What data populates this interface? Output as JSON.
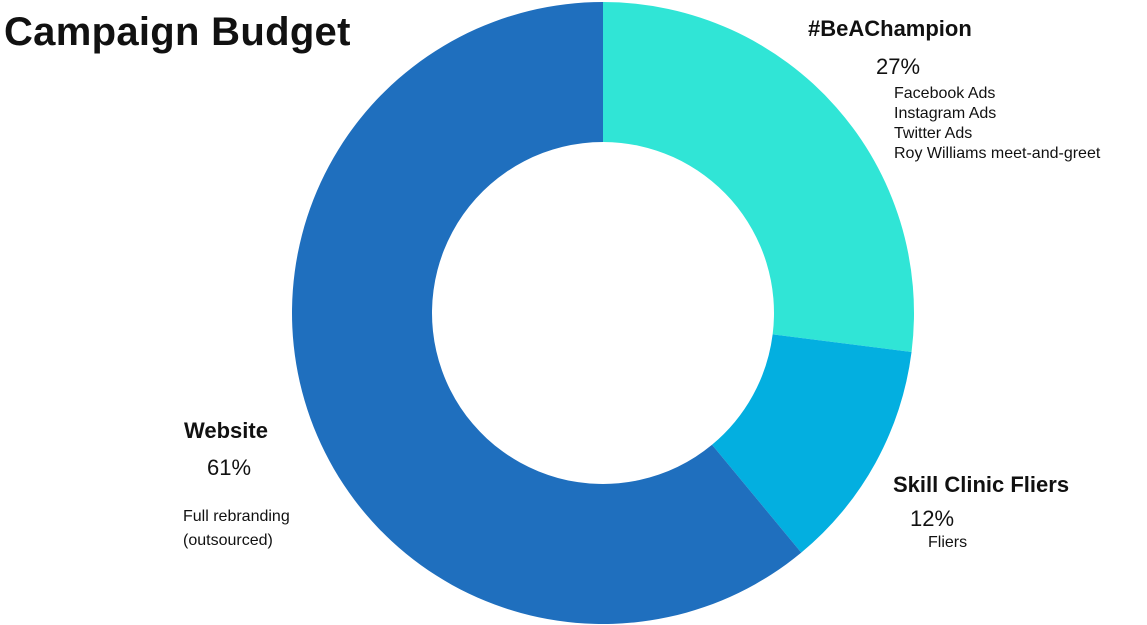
{
  "chart_data": {
    "type": "pie",
    "title": "Campaign Budget",
    "donut": true,
    "slices": [
      {
        "name": "#BeAChampion",
        "value": 27,
        "percent_label": "27%",
        "color": "#30e5d6",
        "details": [
          "Facebook Ads",
          "Instagram Ads",
          "Twitter Ads",
          "Roy Williams meet-and-greet"
        ]
      },
      {
        "name": "Skill Clinic Fliers",
        "value": 12,
        "percent_label": "12%",
        "color": "#03afe0",
        "details": [
          "Fliers"
        ]
      },
      {
        "name": "Website",
        "value": 61,
        "percent_label": "61%",
        "color": "#1f6fbe",
        "details": [
          "Full rebranding",
          "(outsourced)"
        ]
      }
    ]
  }
}
